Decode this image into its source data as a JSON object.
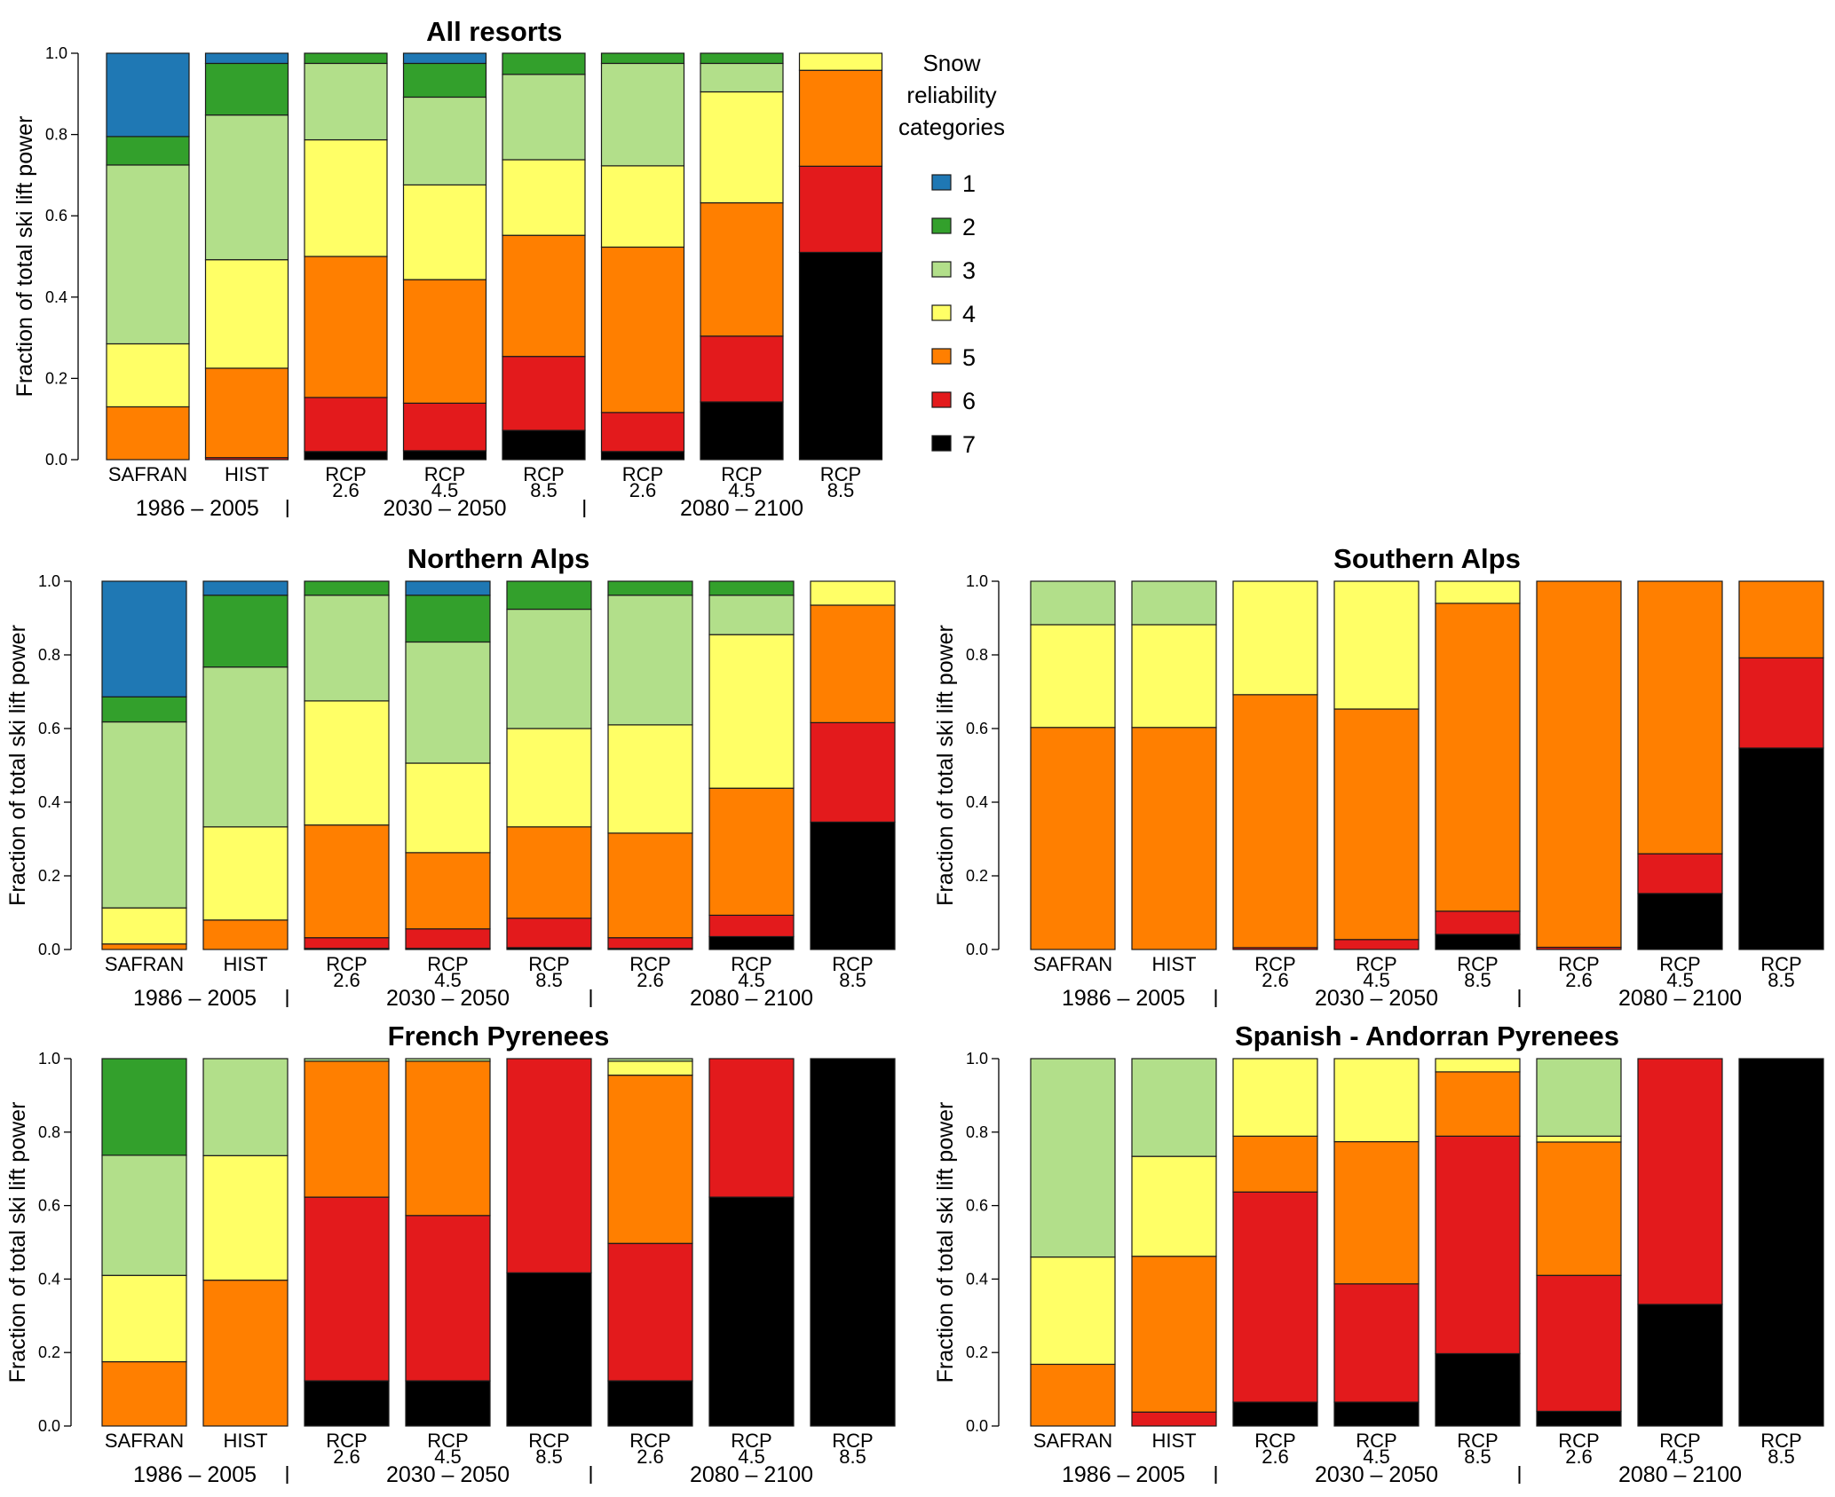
{
  "legend": {
    "title_lines": [
      "Snow",
      "reliability",
      "categories"
    ],
    "categories": [
      {
        "label": "1",
        "color": "#1f78b4"
      },
      {
        "label": "2",
        "color": "#33a02c"
      },
      {
        "label": "3",
        "color": "#b2df8a"
      },
      {
        "label": "4",
        "color": "#ffff66"
      },
      {
        "label": "5",
        "color": "#ff7f00"
      },
      {
        "label": "6",
        "color": "#e31a1c"
      },
      {
        "label": "7",
        "color": "#000000"
      }
    ]
  },
  "chart_data": [
    {
      "type": "bar",
      "stacked": true,
      "title": "All resorts",
      "ylabel": "Fraction of total ski lift power",
      "ylim": [
        0,
        1
      ],
      "yticks": [
        "0.0",
        "0.2",
        "0.4",
        "0.6",
        "0.8",
        "1.0"
      ],
      "categories": [
        [
          "SAFRAN"
        ],
        [
          "HIST"
        ],
        [
          "RCP",
          "2.6"
        ],
        [
          "RCP",
          "4.5"
        ],
        [
          "RCP",
          "8.5"
        ],
        [
          "RCP",
          "2.6"
        ],
        [
          "RCP",
          "4.5"
        ],
        [
          "RCP",
          "8.5"
        ]
      ],
      "periods": [
        "1986 2005",
        "2030 2050",
        "2080 2100"
      ],
      "series": [
        {
          "name": "1",
          "values": [
            0.205,
            0.025,
            0,
            0.025,
            0,
            0,
            0,
            0
          ]
        },
        {
          "name": "2",
          "values": [
            0.07,
            0.127,
            0.025,
            0.083,
            0.052,
            0.025,
            0.025,
            0
          ]
        },
        {
          "name": "3",
          "values": [
            0.44,
            0.356,
            0.188,
            0.216,
            0.21,
            0.252,
            0.07,
            0
          ]
        },
        {
          "name": "4",
          "values": [
            0.155,
            0.267,
            0.287,
            0.233,
            0.186,
            0.2,
            0.273,
            0.042
          ]
        },
        {
          "name": "5",
          "values": [
            0.13,
            0.22,
            0.347,
            0.304,
            0.298,
            0.407,
            0.328,
            0.236
          ]
        },
        {
          "name": "6",
          "values": [
            0,
            0.005,
            0.133,
            0.117,
            0.182,
            0.096,
            0.162,
            0.212
          ]
        },
        {
          "name": "7",
          "values": [
            0,
            0,
            0.02,
            0.022,
            0.072,
            0.02,
            0.142,
            0.51
          ]
        }
      ]
    },
    {
      "type": "bar",
      "stacked": true,
      "title": "Northern Alps",
      "ylabel": "Fraction of total ski lift power",
      "ylim": [
        0,
        1
      ],
      "yticks": [
        "0.0",
        "0.2",
        "0.4",
        "0.6",
        "0.8",
        "1.0"
      ],
      "categories": [
        [
          "SAFRAN"
        ],
        [
          "HIST"
        ],
        [
          "RCP",
          "2.6"
        ],
        [
          "RCP",
          "4.5"
        ],
        [
          "RCP",
          "8.5"
        ],
        [
          "RCP",
          "2.6"
        ],
        [
          "RCP",
          "4.5"
        ],
        [
          "RCP",
          "8.5"
        ]
      ],
      "periods": [
        "1986 2005",
        "2030 2050",
        "2080 2100"
      ],
      "series": [
        {
          "name": "1",
          "values": [
            0.314,
            0.038,
            0,
            0.038,
            0,
            0,
            0,
            0
          ]
        },
        {
          "name": "2",
          "values": [
            0.068,
            0.195,
            0.038,
            0.127,
            0.076,
            0.038,
            0.038,
            0
          ]
        },
        {
          "name": "3",
          "values": [
            0.505,
            0.434,
            0.287,
            0.329,
            0.324,
            0.352,
            0.107,
            0
          ]
        },
        {
          "name": "4",
          "values": [
            0.098,
            0.253,
            0.337,
            0.243,
            0.267,
            0.294,
            0.417,
            0.065
          ]
        },
        {
          "name": "5",
          "values": [
            0.015,
            0.08,
            0.306,
            0.207,
            0.248,
            0.284,
            0.345,
            0.319
          ]
        },
        {
          "name": "6",
          "values": [
            0,
            0,
            0.029,
            0.053,
            0.08,
            0.029,
            0.058,
            0.27
          ]
        },
        {
          "name": "7",
          "values": [
            0,
            0,
            0.003,
            0.003,
            0.005,
            0.003,
            0.035,
            0.346
          ]
        }
      ]
    },
    {
      "type": "bar",
      "stacked": true,
      "title": "Southern Alps",
      "ylabel": "Fraction of total ski lift power",
      "ylim": [
        0,
        1
      ],
      "yticks": [
        "0.0",
        "0.2",
        "0.4",
        "0.6",
        "0.8",
        "1.0"
      ],
      "categories": [
        [
          "SAFRAN"
        ],
        [
          "HIST"
        ],
        [
          "RCP",
          "2.6"
        ],
        [
          "RCP",
          "4.5"
        ],
        [
          "RCP",
          "8.5"
        ],
        [
          "RCP",
          "2.6"
        ],
        [
          "RCP",
          "4.5"
        ],
        [
          "RCP",
          "8.5"
        ]
      ],
      "periods": [
        "1986 2005",
        "2030 2050",
        "2080 2100"
      ],
      "series": [
        {
          "name": "1",
          "values": [
            0,
            0,
            0,
            0,
            0,
            0,
            0,
            0
          ]
        },
        {
          "name": "2",
          "values": [
            0,
            0,
            0,
            0,
            0,
            0,
            0,
            0
          ]
        },
        {
          "name": "3",
          "values": [
            0.118,
            0.118,
            0,
            0,
            0,
            0,
            0,
            0
          ]
        },
        {
          "name": "4",
          "values": [
            0.279,
            0.279,
            0.308,
            0.347,
            0.06,
            0,
            0,
            0
          ]
        },
        {
          "name": "5",
          "values": [
            0.603,
            0.603,
            0.687,
            0.626,
            0.836,
            0.994,
            0.74,
            0.208
          ]
        },
        {
          "name": "6",
          "values": [
            0,
            0,
            0.005,
            0.027,
            0.063,
            0.006,
            0.108,
            0.245
          ]
        },
        {
          "name": "7",
          "values": [
            0,
            0,
            0,
            0,
            0.041,
            0,
            0.152,
            0.547
          ]
        }
      ]
    },
    {
      "type": "bar",
      "stacked": true,
      "title": "French Pyrenees",
      "ylabel": "Fraction of total ski lift power",
      "ylim": [
        0,
        1
      ],
      "yticks": [
        "0.0",
        "0.2",
        "0.4",
        "0.6",
        "0.8",
        "1.0"
      ],
      "categories": [
        [
          "SAFRAN"
        ],
        [
          "HIST"
        ],
        [
          "RCP",
          "2.6"
        ],
        [
          "RCP",
          "4.5"
        ],
        [
          "RCP",
          "8.5"
        ],
        [
          "RCP",
          "2.6"
        ],
        [
          "RCP",
          "4.5"
        ],
        [
          "RCP",
          "8.5"
        ]
      ],
      "periods": [
        "1986 2005",
        "2030 2050",
        "2080 2100"
      ],
      "series": [
        {
          "name": "1",
          "values": [
            0,
            0,
            0,
            0,
            0,
            0,
            0,
            0
          ]
        },
        {
          "name": "2",
          "values": [
            0.263,
            0,
            0,
            0,
            0,
            0,
            0,
            0
          ]
        },
        {
          "name": "3",
          "values": [
            0.327,
            0.264,
            0.007,
            0.007,
            0,
            0.007,
            0,
            0
          ]
        },
        {
          "name": "4",
          "values": [
            0.235,
            0.339,
            0,
            0,
            0,
            0.038,
            0,
            0
          ]
        },
        {
          "name": "5",
          "values": [
            0.175,
            0.397,
            0.37,
            0.42,
            0,
            0.458,
            0,
            0
          ]
        },
        {
          "name": "6",
          "values": [
            0,
            0,
            0.5,
            0.45,
            0.583,
            0.374,
            0.377,
            0
          ]
        },
        {
          "name": "7",
          "values": [
            0,
            0,
            0.123,
            0.123,
            0.417,
            0.123,
            0.623,
            1
          ]
        }
      ]
    },
    {
      "type": "bar",
      "stacked": true,
      "title": "Spanish - Andorran Pyrenees",
      "ylabel": "Fraction of total ski lift power",
      "ylim": [
        0,
        1
      ],
      "yticks": [
        "0.0",
        "0.2",
        "0.4",
        "0.6",
        "0.8",
        "1.0"
      ],
      "categories": [
        [
          "SAFRAN"
        ],
        [
          "HIST"
        ],
        [
          "RCP",
          "2.6"
        ],
        [
          "RCP",
          "4.5"
        ],
        [
          "RCP",
          "8.5"
        ],
        [
          "RCP",
          "2.6"
        ],
        [
          "RCP",
          "4.5"
        ],
        [
          "RCP",
          "8.5"
        ]
      ],
      "periods": [
        "1986 2005",
        "2030 2050",
        "2080 2100"
      ],
      "series": [
        {
          "name": "1",
          "values": [
            0,
            0,
            0,
            0,
            0,
            0,
            0,
            0
          ]
        },
        {
          "name": "2",
          "values": [
            0,
            0,
            0,
            0,
            0,
            0,
            0,
            0
          ]
        },
        {
          "name": "3",
          "values": [
            0.54,
            0.266,
            0,
            0,
            0,
            0.211,
            0,
            0
          ]
        },
        {
          "name": "4",
          "values": [
            0.292,
            0.272,
            0.211,
            0.226,
            0.036,
            0.016,
            0,
            0
          ]
        },
        {
          "name": "5",
          "values": [
            0.168,
            0.424,
            0.152,
            0.387,
            0.175,
            0.363,
            0,
            0
          ]
        },
        {
          "name": "6",
          "values": [
            0,
            0.038,
            0.572,
            0.322,
            0.592,
            0.37,
            0.669,
            0
          ]
        },
        {
          "name": "7",
          "values": [
            0,
            0,
            0.065,
            0.065,
            0.197,
            0.04,
            0.331,
            1
          ]
        }
      ]
    }
  ]
}
